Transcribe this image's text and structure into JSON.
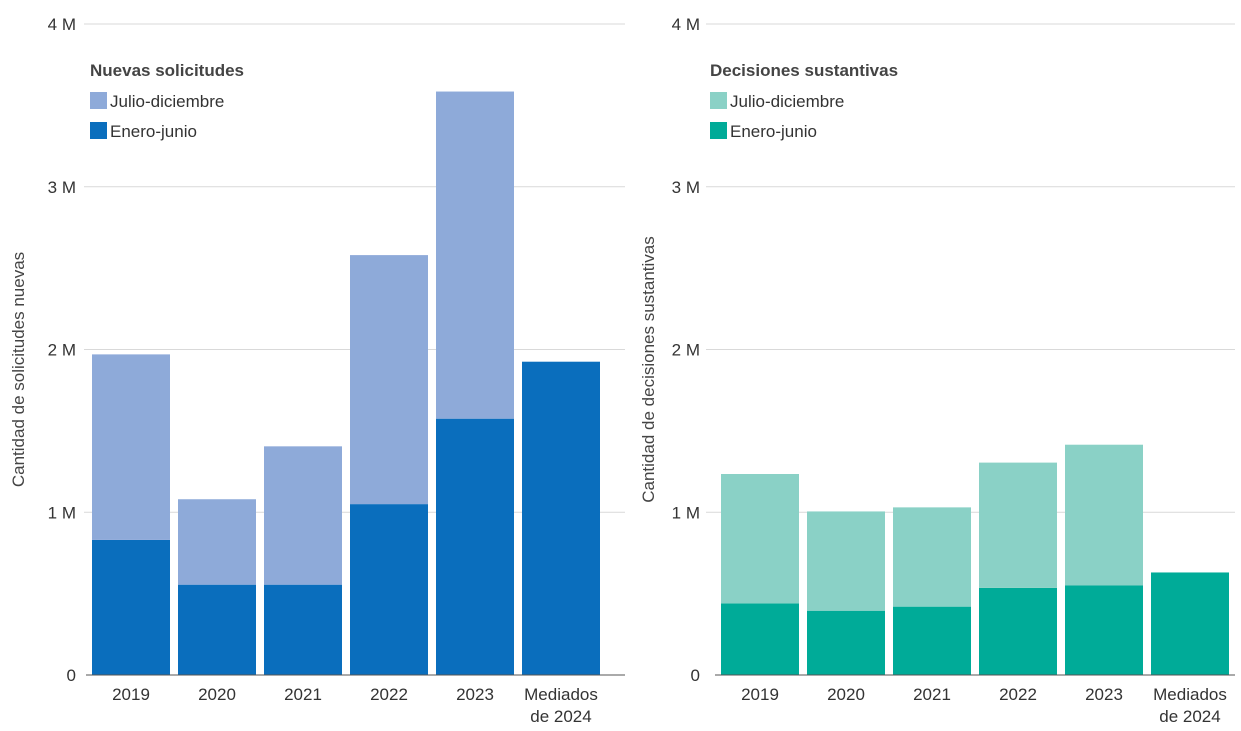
{
  "chart_data": [
    {
      "type": "bar",
      "stacked": true,
      "categories": [
        "2019",
        "2020",
        "2021",
        "2022",
        "2023",
        "Mediados de 2024"
      ],
      "ylabel": "Cantidad de solicitudes nuevas",
      "ylim": [
        0,
        4000000
      ],
      "yticks": [
        0,
        1000000,
        2000000,
        3000000,
        4000000
      ],
      "ytick_labels": [
        "0",
        "1 M",
        "2 M",
        "3 M",
        "4 M"
      ],
      "grid": true,
      "legend": {
        "title": "Nuevas solicitudes",
        "placement": "top-left",
        "entries": [
          "Julio-diciembre",
          "Enero-junio"
        ]
      },
      "series": [
        {
          "name": "Enero-junio",
          "color": "#0a6ebd",
          "values": [
            830000,
            555000,
            555000,
            1050000,
            1575000,
            1925000
          ]
        },
        {
          "name": "Julio-diciembre",
          "color": "#8eaad9",
          "values": [
            1140000,
            525000,
            850000,
            1530000,
            2010000,
            0
          ]
        }
      ]
    },
    {
      "type": "bar",
      "stacked": true,
      "categories": [
        "2019",
        "2020",
        "2021",
        "2022",
        "2023",
        "Mediados de 2024"
      ],
      "ylabel": "Cantidad de decisiones sustantivas",
      "ylim": [
        0,
        4000000
      ],
      "yticks": [
        0,
        1000000,
        2000000,
        3000000,
        4000000
      ],
      "ytick_labels": [
        "0",
        "1 M",
        "2 M",
        "3 M",
        "4 M"
      ],
      "grid": true,
      "legend": {
        "title": "Decisiones sustantivas",
        "placement": "top-left",
        "entries": [
          "Julio-diciembre",
          "Enero-junio"
        ]
      },
      "series": [
        {
          "name": "Enero-junio",
          "color": "#00ab98",
          "values": [
            440000,
            395000,
            420000,
            535000,
            550000,
            630000
          ]
        },
        {
          "name": "Julio-diciembre",
          "color": "#8ad1c6",
          "values": [
            795000,
            610000,
            610000,
            770000,
            865000,
            0
          ]
        }
      ]
    }
  ]
}
